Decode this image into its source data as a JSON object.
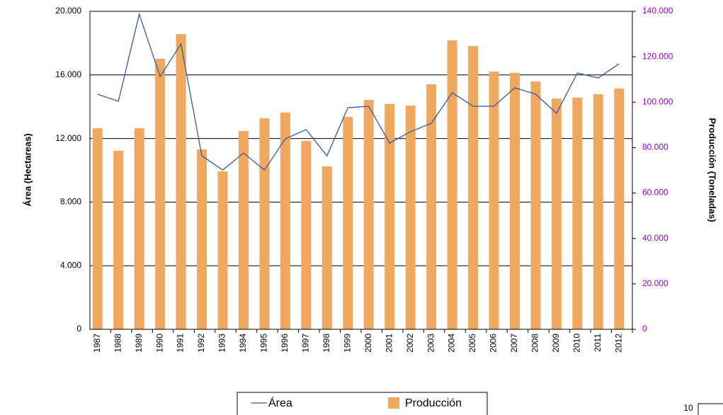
{
  "chart_data": {
    "type": "bar",
    "categories": [
      "1987",
      "1988",
      "1989",
      "1990",
      "1991",
      "1992",
      "1993",
      "1994",
      "1995",
      "1996",
      "1997",
      "1998",
      "1999",
      "2000",
      "2001",
      "2002",
      "2003",
      "2004",
      "2005",
      "2006",
      "2007",
      "2008",
      "2009",
      "2010",
      "2011",
      "2012"
    ],
    "series": [
      {
        "name": "Área",
        "type": "line",
        "axis": "y",
        "color": "#3a5a98",
        "values": [
          14790,
          14340,
          19820,
          15900,
          17950,
          10910,
          10020,
          11090,
          10020,
          11980,
          12560,
          10910,
          13940,
          14030,
          11710,
          12430,
          12960,
          14880,
          14030,
          14030,
          15190,
          14790,
          13590,
          16120,
          15810,
          16700
        ]
      },
      {
        "name": "Producción",
        "type": "bar",
        "axis": "y2",
        "color": "#f0a860",
        "values": [
          88500,
          78600,
          88500,
          119100,
          130000,
          79200,
          69500,
          87300,
          92900,
          95400,
          82900,
          71700,
          93500,
          101000,
          99200,
          98500,
          107900,
          127200,
          124700,
          113500,
          112900,
          109100,
          101600,
          102000,
          103500,
          106000
        ]
      }
    ],
    "ylabel": "Área (Hectareas)",
    "y2label": "Producción (Toneladas)",
    "ylim": [
      0,
      20000
    ],
    "yticks": [
      0,
      {
        "value": 4000,
        "label": "4.000"
      },
      {
        "value": 8000,
        "label": "8.000"
      },
      {
        "value": 12000,
        "label": "12.000"
      },
      {
        "value": 16000,
        "label": "16.000"
      },
      {
        "value": 20000,
        "label": "20.000"
      }
    ],
    "y2lim": [
      0,
      140000
    ],
    "y2ticks": [
      0,
      {
        "value": 20000,
        "label": "20.000"
      },
      {
        "value": 40000,
        "label": "40.000"
      },
      {
        "value": 60000,
        "label": "60.000"
      },
      {
        "value": 80000,
        "label": "80.000"
      },
      {
        "value": 100000,
        "label": "100.000"
      },
      {
        "value": 120000,
        "label": "120.000"
      },
      {
        "value": 140000,
        "label": "140.000"
      }
    ],
    "y2tick_color": "#9a00c8",
    "grid": true
  },
  "corner_number": "10"
}
